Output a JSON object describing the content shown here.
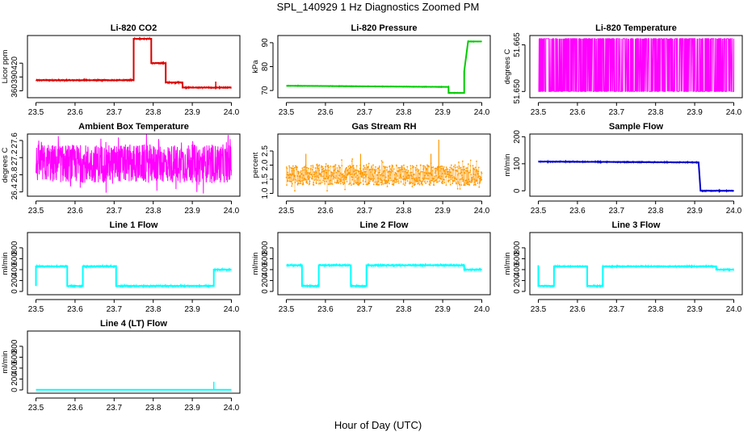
{
  "figure": {
    "title": "SPL_140929  1 Hz Diagnostics Zoomed PM",
    "xlabel": "Hour of Day (UTC)"
  },
  "chart_data": [
    {
      "type": "line",
      "title": "Li-820 CO2",
      "ylabel": "Licor ppm",
      "color": "#dd0000",
      "xlim": [
        23.5,
        24.0
      ],
      "xticks": [
        "23.5",
        "23.6",
        "23.7",
        "23.8",
        "23.9",
        "24.0"
      ],
      "ylim": [
        345,
        480
      ],
      "yticks": [
        {
          "v": 360,
          "label": "360"
        },
        {
          "v": 390,
          "label": "390"
        },
        {
          "v": 420,
          "label": "420"
        }
      ],
      "x": [
        23.5,
        23.75,
        23.75,
        23.795,
        23.795,
        23.832,
        23.832,
        23.875,
        23.875,
        24.0
      ],
      "y": [
        383,
        383,
        473,
        473,
        420,
        420,
        378,
        378,
        367,
        367
      ],
      "noise": 1.5,
      "spikes": [
        {
          "x": 23.96,
          "y": 380
        }
      ]
    },
    {
      "type": "line",
      "title": "Li-820 Pressure",
      "ylabel": "kPa",
      "color": "#00cc00",
      "xlim": [
        23.5,
        24.0
      ],
      "xticks": [
        "23.5",
        "23.6",
        "23.7",
        "23.8",
        "23.9",
        "24.0"
      ],
      "ylim": [
        67,
        93
      ],
      "yticks": [
        {
          "v": 70,
          "label": "70"
        },
        {
          "v": 80,
          "label": "80"
        },
        {
          "v": 90,
          "label": "90"
        }
      ],
      "x": [
        23.5,
        23.915,
        23.915,
        23.955,
        23.955,
        23.965,
        24.0
      ],
      "y": [
        72,
        71.5,
        69,
        69,
        78,
        90.5,
        90.5
      ],
      "noise": 0.15,
      "spikes": []
    },
    {
      "type": "line",
      "title": "Li-820 Temperature",
      "ylabel": "degrees C",
      "color": "#ff00ff",
      "xlim": [
        23.5,
        24.0
      ],
      "xticks": [
        "23.5",
        "23.6",
        "23.7",
        "23.8",
        "23.9",
        "24.0"
      ],
      "ylim": [
        51.648,
        51.668
      ],
      "yticks": [
        {
          "v": 51.65,
          "label": "51.650"
        },
        {
          "v": 51.665,
          "label": "51.665"
        }
      ],
      "toggle": [
        51.65,
        51.667
      ],
      "noise": 0,
      "spikes": []
    },
    {
      "type": "line",
      "title": "Ambient Box Temperature",
      "ylabel": "degrees C",
      "color": "#ff00ff",
      "xlim": [
        23.5,
        24.0
      ],
      "xticks": [
        "23.5",
        "23.6",
        "23.7",
        "23.8",
        "23.9",
        "24.0"
      ],
      "ylim": [
        26.3,
        27.75
      ],
      "yticks": [
        {
          "v": 26.4,
          "label": "26.4"
        },
        {
          "v": 26.8,
          "label": "26.8"
        },
        {
          "v": 27.2,
          "label": "27.2"
        },
        {
          "v": 27.6,
          "label": "27.6"
        }
      ],
      "band": [
        26.5,
        27.62
      ],
      "noise": 0,
      "spikes": []
    },
    {
      "type": "scatter",
      "title": "Gas Stream RH",
      "ylabel": "percent",
      "color": "#ff9900",
      "xlim": [
        23.5,
        24.0
      ],
      "xticks": [
        "23.5",
        "23.6",
        "23.7",
        "23.8",
        "23.9",
        "24.0"
      ],
      "ylim": [
        0.9,
        3.1
      ],
      "yticks": [
        {
          "v": 1.0,
          "label": "1.0"
        },
        {
          "v": 1.5,
          "label": "1.5"
        },
        {
          "v": 2.0,
          "label": "2.0"
        },
        {
          "v": 2.5,
          "label": "2.5"
        }
      ],
      "band": [
        1.2,
        2.1
      ],
      "noise": 0,
      "spikes": []
    },
    {
      "type": "line",
      "title": "Sample Flow",
      "ylabel": "ml/min",
      "color": "#0000cc",
      "xlim": [
        23.5,
        24.0
      ],
      "xticks": [
        "23.5",
        "23.6",
        "23.7",
        "23.8",
        "23.9",
        "24.0"
      ],
      "ylim": [
        -20,
        210
      ],
      "yticks": [
        {
          "v": 0,
          "label": "0"
        },
        {
          "v": 100,
          "label": "100"
        },
        {
          "v": 200,
          "label": "200"
        }
      ],
      "x": [
        23.5,
        23.91,
        23.915,
        24.0
      ],
      "y": [
        108,
        105,
        0,
        0
      ],
      "noise": 2,
      "spikes": []
    },
    {
      "type": "line",
      "title": "Line 1 Flow",
      "ylabel": "ml/min",
      "color": "#00ffff",
      "xlim": [
        23.5,
        24.0
      ],
      "xticks": [
        "23.5",
        "23.6",
        "23.7",
        "23.8",
        "23.9",
        "24.0"
      ],
      "ylim": [
        -60,
        1080
      ],
      "yticks": [
        {
          "v": 0,
          "label": "0"
        },
        {
          "v": 200,
          "label": "200"
        },
        {
          "v": 400,
          "label": "400"
        },
        {
          "v": 600,
          "label": "600"
        },
        {
          "v": 800,
          "label": "800"
        }
      ],
      "x": [
        23.5,
        23.5,
        23.58,
        23.58,
        23.62,
        23.62,
        23.705,
        23.705,
        23.955,
        23.955,
        24.0
      ],
      "y": [
        100,
        460,
        460,
        100,
        100,
        460,
        460,
        100,
        100,
        400,
        400
      ],
      "noise": 15,
      "spikes": []
    },
    {
      "type": "line",
      "title": "Line 2 Flow",
      "ylabel": "ml/min",
      "color": "#00ffff",
      "xlim": [
        23.5,
        24.0
      ],
      "xticks": [
        "23.5",
        "23.6",
        "23.7",
        "23.8",
        "23.9",
        "24.0"
      ],
      "ylim": [
        -60,
        1080
      ],
      "yticks": [
        {
          "v": 0,
          "label": "0"
        },
        {
          "v": 200,
          "label": "200"
        },
        {
          "v": 400,
          "label": "400"
        },
        {
          "v": 600,
          "label": "600"
        },
        {
          "v": 800,
          "label": "800"
        }
      ],
      "x": [
        23.5,
        23.54,
        23.54,
        23.583,
        23.583,
        23.665,
        23.665,
        23.705,
        23.705,
        23.955,
        23.955,
        24.0
      ],
      "y": [
        480,
        480,
        100,
        100,
        480,
        480,
        100,
        100,
        480,
        480,
        400,
        400
      ],
      "noise": 15,
      "spikes": []
    },
    {
      "type": "line",
      "title": "Line 3 Flow",
      "ylabel": "ml/min",
      "color": "#00ffff",
      "xlim": [
        23.5,
        24.0
      ],
      "xticks": [
        "23.5",
        "23.6",
        "23.7",
        "23.8",
        "23.9",
        "24.0"
      ],
      "ylim": [
        -60,
        1080
      ],
      "yticks": [
        {
          "v": 0,
          "label": "0"
        },
        {
          "v": 200,
          "label": "200"
        },
        {
          "v": 400,
          "label": "400"
        },
        {
          "v": 600,
          "label": "600"
        },
        {
          "v": 800,
          "label": "800"
        }
      ],
      "x": [
        23.5,
        23.5,
        23.54,
        23.54,
        23.625,
        23.625,
        23.665,
        23.665,
        23.955,
        23.955,
        24.0
      ],
      "y": [
        480,
        100,
        100,
        460,
        460,
        100,
        100,
        460,
        460,
        400,
        400
      ],
      "noise": 12,
      "spikes": []
    },
    {
      "type": "line",
      "title": "Line 4 (LT) Flow",
      "ylabel": "ml/min",
      "color": "#00ffff",
      "xlim": [
        23.5,
        24.0
      ],
      "xticks": [
        "23.5",
        "23.6",
        "23.7",
        "23.8",
        "23.9",
        "24.0"
      ],
      "ylim": [
        -60,
        1080
      ],
      "yticks": [
        {
          "v": 0,
          "label": "0"
        },
        {
          "v": 200,
          "label": "200"
        },
        {
          "v": 400,
          "label": "400"
        },
        {
          "v": 600,
          "label": "600"
        },
        {
          "v": 800,
          "label": "800"
        }
      ],
      "x": [
        23.5,
        24.0
      ],
      "y": [
        2,
        2
      ],
      "noise": 0,
      "spikes": [
        {
          "x": 23.955,
          "y": 150
        }
      ]
    }
  ]
}
